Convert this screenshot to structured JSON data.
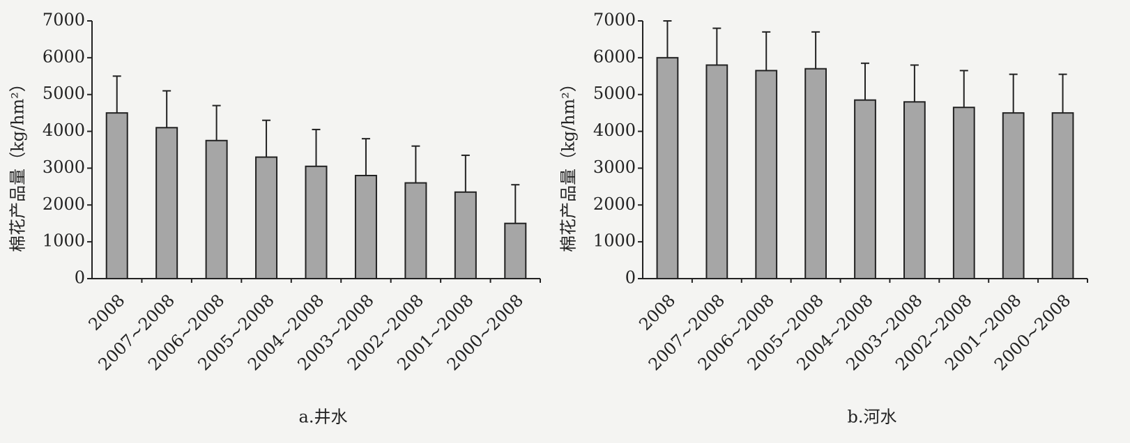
{
  "chart_data": [
    {
      "type": "bar",
      "title": "a.井水",
      "ylabel": "棉花产品量（kg/hm²）",
      "color": "#a6a6a6",
      "categories": [
        "2008",
        "2007~2008",
        "2006~2008",
        "2005~2008",
        "2004~2008",
        "2003~2008",
        "2002~2008",
        "2001~2008",
        "2000~2008"
      ],
      "values": [
        4500,
        4100,
        3750,
        3300,
        3050,
        2800,
        2600,
        2350,
        1500
      ],
      "errors": [
        1000,
        1000,
        950,
        1000,
        1000,
        1000,
        1000,
        1000,
        1050
      ],
      "ylim": [
        0,
        7000
      ],
      "yticks": [
        0,
        1000,
        2000,
        3000,
        4000,
        5000,
        6000,
        7000
      ]
    },
    {
      "type": "bar",
      "title": "b.河水",
      "ylabel": "棉花产品量（kg/hm²）",
      "color": "#a6a6a6",
      "categories": [
        "2008",
        "2007~2008",
        "2006~2008",
        "2005~2008",
        "2004~2008",
        "2003~2008",
        "2002~2008",
        "2001~2008",
        "2000~2008"
      ],
      "values": [
        6000,
        5800,
        5650,
        5700,
        4850,
        4800,
        4650,
        4500,
        4500
      ],
      "errors": [
        1000,
        1000,
        1050,
        1000,
        1000,
        1000,
        1000,
        1050,
        1050
      ],
      "ylim": [
        0,
        7000
      ],
      "yticks": [
        0,
        1000,
        2000,
        3000,
        4000,
        5000,
        6000,
        7000
      ]
    }
  ]
}
